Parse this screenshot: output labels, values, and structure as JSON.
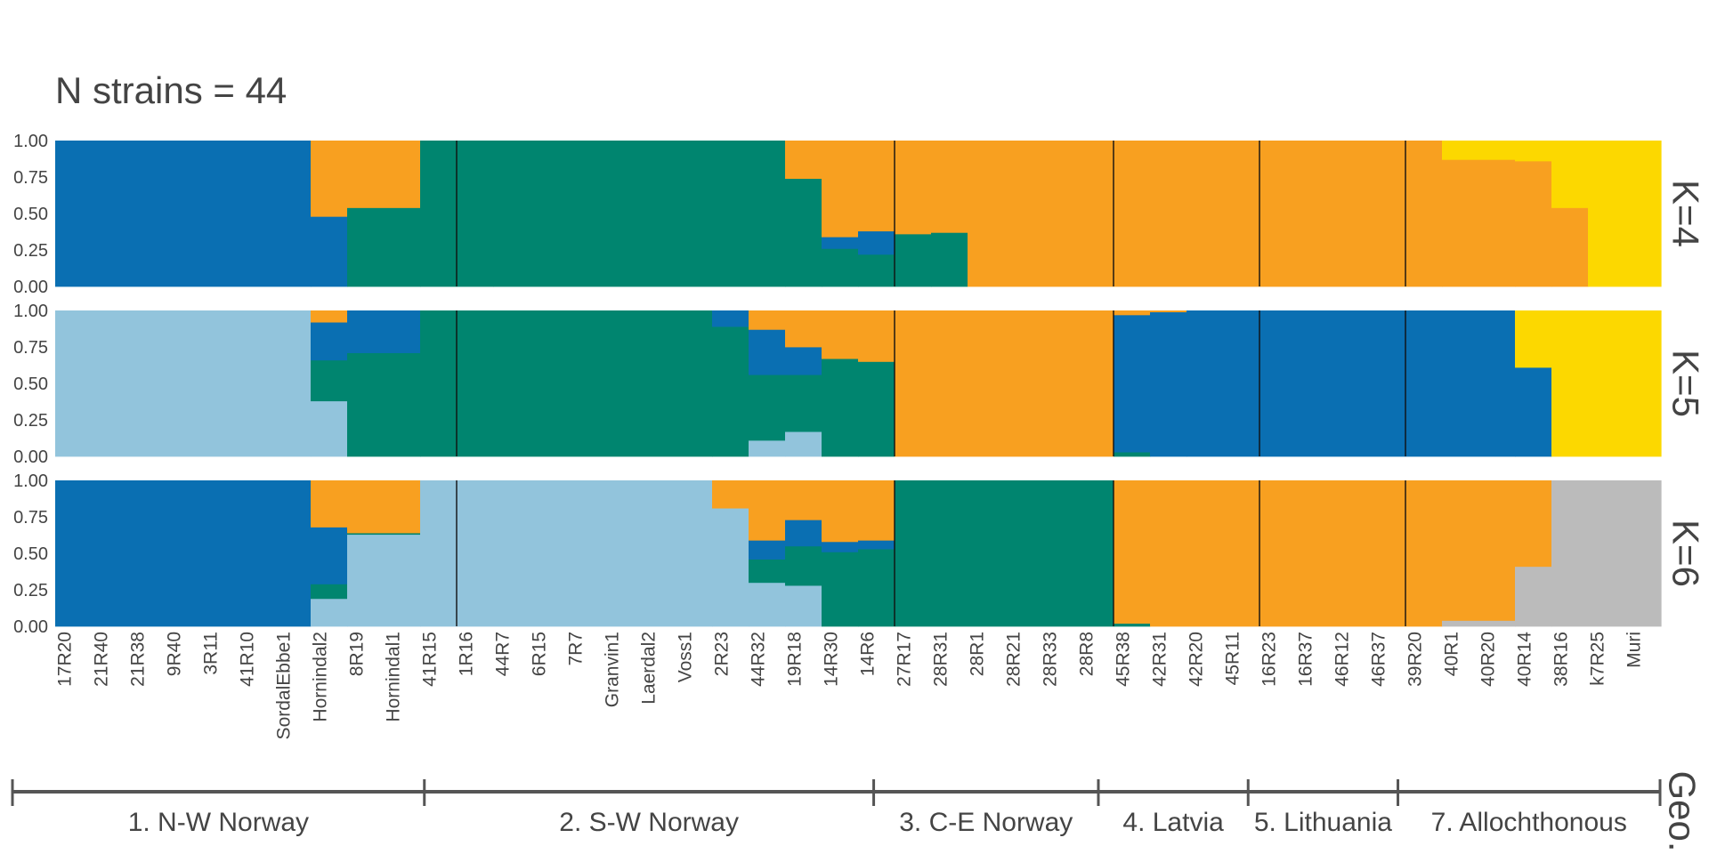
{
  "title": "N strains = 44",
  "colors": {
    "blue": "#0a6fb2",
    "green": "#00856f",
    "orange": "#f8a020",
    "yellow": "#fcd800",
    "lightblue": "#92c4dc",
    "gray": "#bbbbbb",
    "text": "#444444"
  },
  "chart_data": {
    "type": "bar",
    "stacked": true,
    "ylim": [
      0,
      1
    ],
    "yticks": [
      "0.00",
      "0.25",
      "0.50",
      "0.75",
      "1.00"
    ],
    "categories": [
      "17R20",
      "21R40",
      "21R38",
      "9R40",
      "3R11",
      "41R10",
      "SordalEbbe1",
      "Hornindal2",
      "8R19",
      "Hornindal1",
      "41R15",
      "1R16",
      "44R7",
      "6R15",
      "7R7",
      "Granvin1",
      "Laerdal2",
      "Voss1",
      "2R23",
      "44R32",
      "19R18",
      "14R30",
      "14R6",
      "27R17",
      "28R31",
      "28R1",
      "28R21",
      "28R33",
      "28R8",
      "45R38",
      "42R31",
      "42R20",
      "45R11",
      "16R23",
      "16R37",
      "46R12",
      "46R37",
      "39R20",
      "40R1",
      "40R20",
      "40R14",
      "38R16",
      "k7R25",
      "Muri"
    ],
    "labeled_tick_indices": [
      0,
      2,
      4,
      6,
      8,
      10,
      12,
      14,
      16,
      18,
      20,
      22,
      24,
      26,
      28,
      30,
      32,
      34,
      36,
      38,
      40,
      42,
      44,
      46,
      48,
      50,
      52,
      54,
      56,
      58,
      60,
      62,
      64,
      66,
      68,
      70,
      72,
      74,
      76,
      78,
      80,
      82,
      84,
      86
    ],
    "n_bars": 88,
    "group_boundaries": [
      11,
      23,
      29,
      33,
      37
    ],
    "groups": [
      {
        "label": "1. N-W Norway",
        "start": 0,
        "end": 11
      },
      {
        "label": "2. S-W Norway",
        "start": 11,
        "end": 23
      },
      {
        "label": "3. C-E Norway",
        "start": 23,
        "end": 29
      },
      {
        "label": "4. Latvia",
        "start": 29,
        "end": 33
      },
      {
        "label": "5. Lithuania",
        "start": 33,
        "end": 37
      },
      {
        "label": "7. Allochthonous",
        "start": 37,
        "end": 44
      }
    ],
    "geo_label": "Geo.",
    "panels": [
      {
        "label": "K=4",
        "bars": [
          [
            [
              1.0,
              "blue"
            ]
          ],
          [
            [
              0.48,
              "blue"
            ],
            [
              0.52,
              "orange"
            ]
          ],
          [
            [
              0.54,
              "green"
            ],
            [
              0.46,
              "orange"
            ]
          ],
          [
            [
              1.0,
              "green"
            ]
          ],
          [
            [
              1.0,
              "green"
            ]
          ],
          [
            [
              0.74,
              "green"
            ],
            [
              0.26,
              "orange"
            ]
          ],
          [
            [
              0.26,
              "green"
            ],
            [
              0.08,
              "blue"
            ],
            [
              0.66,
              "orange"
            ]
          ],
          [
            [
              0.22,
              "green"
            ],
            [
              0.16,
              "blue"
            ],
            [
              0.62,
              "orange"
            ]
          ],
          [
            [
              0.36,
              "green"
            ],
            [
              0.64,
              "orange"
            ]
          ],
          [
            [
              0.37,
              "green"
            ],
            [
              0.63,
              "orange"
            ]
          ],
          [
            [
              1.0,
              "orange"
            ]
          ],
          [
            [
              0.87,
              "orange"
            ],
            [
              0.13,
              "yellow"
            ]
          ],
          [
            [
              0.86,
              "orange"
            ],
            [
              0.14,
              "yellow"
            ]
          ],
          [
            [
              0.54,
              "orange"
            ],
            [
              0.46,
              "yellow"
            ]
          ],
          [
            [
              1.0,
              "yellow"
            ]
          ]
        ],
        "bar_spans": [
          [
            0,
            14
          ],
          [
            14,
            16
          ],
          [
            16,
            20
          ],
          [
            20,
            24
          ],
          [
            24,
            40
          ],
          [
            40,
            42
          ],
          [
            42,
            44
          ],
          [
            44,
            46
          ],
          [
            46,
            48
          ],
          [
            48,
            50
          ],
          [
            50,
            76
          ],
          [
            76,
            80
          ],
          [
            80,
            82
          ],
          [
            82,
            84
          ],
          [
            84,
            88
          ]
        ]
      },
      {
        "label": "K=5",
        "bars": [
          [
            [
              1.0,
              "lightblue"
            ]
          ],
          [
            [
              0.38,
              "lightblue"
            ],
            [
              0.28,
              "green"
            ],
            [
              0.26,
              "blue"
            ],
            [
              0.08,
              "orange"
            ]
          ],
          [
            [
              0.71,
              "green"
            ],
            [
              0.29,
              "blue"
            ]
          ],
          [
            [
              1.0,
              "green"
            ]
          ],
          [
            [
              0.89,
              "green"
            ],
            [
              0.11,
              "blue"
            ]
          ],
          [
            [
              0.11,
              "lightblue"
            ],
            [
              0.45,
              "green"
            ],
            [
              0.31,
              "blue"
            ],
            [
              0.13,
              "orange"
            ]
          ],
          [
            [
              0.17,
              "lightblue"
            ],
            [
              0.39,
              "green"
            ],
            [
              0.19,
              "blue"
            ],
            [
              0.25,
              "orange"
            ]
          ],
          [
            [
              0.67,
              "green"
            ],
            [
              0.33,
              "orange"
            ]
          ],
          [
            [
              0.65,
              "green"
            ],
            [
              0.35,
              "orange"
            ]
          ],
          [
            [
              1.0,
              "orange"
            ]
          ],
          [
            [
              0.03,
              "green"
            ],
            [
              0.94,
              "blue"
            ],
            [
              0.03,
              "orange"
            ]
          ],
          [
            [
              0.99,
              "blue"
            ],
            [
              0.01,
              "orange"
            ]
          ],
          [
            [
              1.0,
              "blue"
            ]
          ],
          [
            [
              0.61,
              "blue"
            ],
            [
              0.39,
              "yellow"
            ]
          ],
          [
            [
              1.0,
              "yellow"
            ]
          ]
        ],
        "bar_spans": [
          [
            0,
            14
          ],
          [
            14,
            16
          ],
          [
            16,
            20
          ],
          [
            20,
            36
          ],
          [
            36,
            38
          ],
          [
            38,
            40
          ],
          [
            40,
            42
          ],
          [
            42,
            44
          ],
          [
            44,
            46
          ],
          [
            46,
            58
          ],
          [
            58,
            60
          ],
          [
            60,
            62
          ],
          [
            62,
            80
          ],
          [
            80,
            82
          ],
          [
            82,
            88
          ]
        ]
      },
      {
        "label": "K=6",
        "bars": [
          [
            [
              1.0,
              "blue"
            ]
          ],
          [
            [
              0.19,
              "lightblue"
            ],
            [
              0.1,
              "green"
            ],
            [
              0.39,
              "blue"
            ],
            [
              0.32,
              "orange"
            ]
          ],
          [
            [
              0.63,
              "lightblue"
            ],
            [
              0.01,
              "green"
            ],
            [
              0.36,
              "orange"
            ]
          ],
          [
            [
              1.0,
              "lightblue"
            ]
          ],
          [
            [
              0.81,
              "lightblue"
            ],
            [
              0.19,
              "orange"
            ]
          ],
          [
            [
              0.3,
              "lightblue"
            ],
            [
              0.16,
              "green"
            ],
            [
              0.13,
              "blue"
            ],
            [
              0.41,
              "orange"
            ]
          ],
          [
            [
              0.28,
              "lightblue"
            ],
            [
              0.27,
              "green"
            ],
            [
              0.18,
              "blue"
            ],
            [
              0.27,
              "orange"
            ]
          ],
          [
            [
              0.51,
              "green"
            ],
            [
              0.07,
              "blue"
            ],
            [
              0.42,
              "orange"
            ]
          ],
          [
            [
              0.53,
              "green"
            ],
            [
              0.06,
              "blue"
            ],
            [
              0.41,
              "orange"
            ]
          ],
          [
            [
              1.0,
              "green"
            ]
          ],
          [
            [
              0.02,
              "green"
            ],
            [
              0.98,
              "orange"
            ]
          ],
          [
            [
              1.0,
              "orange"
            ]
          ],
          [
            [
              0.04,
              "gray"
            ],
            [
              0.96,
              "orange"
            ]
          ],
          [
            [
              0.41,
              "gray"
            ],
            [
              0.59,
              "orange"
            ]
          ],
          [
            [
              1.0,
              "gray"
            ]
          ]
        ],
        "bar_spans": [
          [
            0,
            14
          ],
          [
            14,
            16
          ],
          [
            16,
            20
          ],
          [
            20,
            36
          ],
          [
            36,
            38
          ],
          [
            38,
            40
          ],
          [
            40,
            42
          ],
          [
            42,
            44
          ],
          [
            44,
            46
          ],
          [
            46,
            58
          ],
          [
            58,
            60
          ],
          [
            60,
            76
          ],
          [
            76,
            80
          ],
          [
            80,
            82
          ],
          [
            82,
            88
          ]
        ]
      }
    ]
  }
}
